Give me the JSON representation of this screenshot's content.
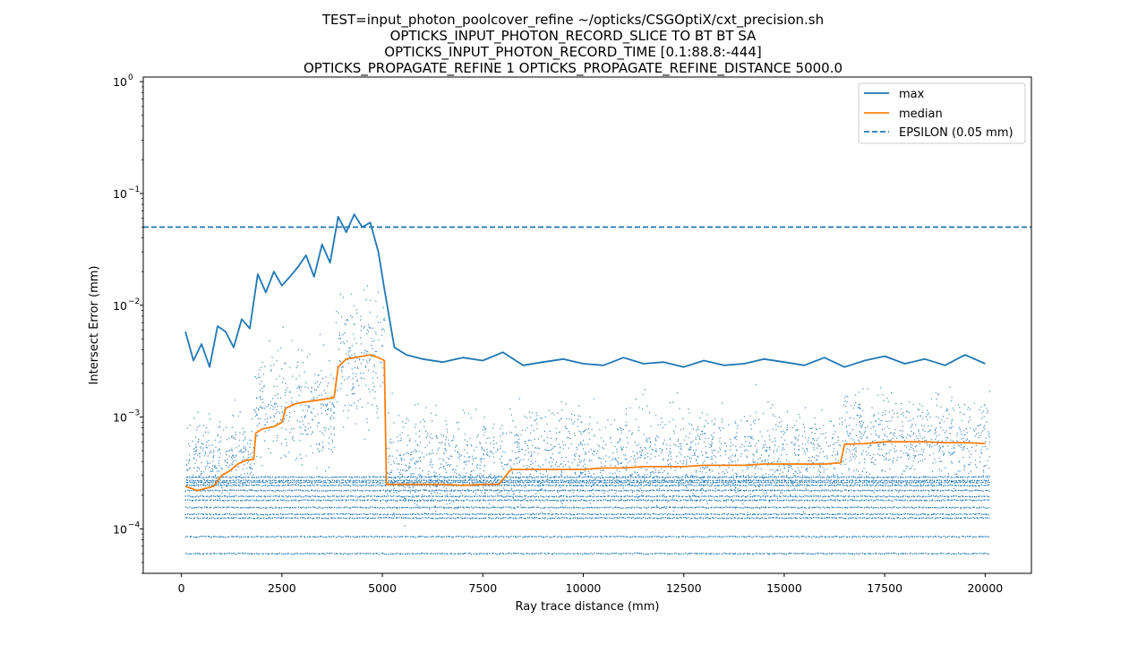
{
  "chart_data": {
    "type": "scatter",
    "title_lines": [
      "TEST=input_photon_poolcover_refine ~/opticks/CSGOptiX/cxt_precision.sh",
      "OPTICKS_INPUT_PHOTON_RECORD_SLICE TO BT BT SA",
      "OPTICKS_INPUT_PHOTON_RECORD_TIME [0.1:88.8:-444]",
      "OPTICKS_PROPAGATE_REFINE 1 OPTICKS_PROPAGATE_REFINE_DISTANCE 5000.0"
    ],
    "xlabel": "Ray trace distance (mm)",
    "ylabel": "Intersect Error (mm)",
    "xlim": [
      -950,
      21150
    ],
    "ylim": [
      4e-05,
      1.1
    ],
    "yscale": "log",
    "xticks": [
      0,
      2500,
      5000,
      7500,
      10000,
      12500,
      15000,
      17500,
      20000
    ],
    "xtick_labels": [
      "0",
      "2500",
      "5000",
      "7500",
      "10000",
      "12500",
      "15000",
      "17500",
      "20000"
    ],
    "yticks": [
      0.0001,
      0.001,
      0.01,
      0.1,
      1
    ],
    "ytick_labels": [
      "10",
      "10",
      "10",
      "10",
      "10"
    ],
    "ytick_exponents": [
      "−4",
      "−3",
      "−2",
      "−1",
      "0"
    ],
    "grid": false,
    "legend_position": "top-right",
    "series": [
      {
        "name": "max",
        "kind": "line",
        "color": "#1f77b4",
        "x": [
          100,
          300,
          500,
          700,
          900,
          1100,
          1300,
          1500,
          1700,
          1900,
          2100,
          2300,
          2500,
          2700,
          2900,
          3100,
          3300,
          3500,
          3700,
          3900,
          4100,
          4300,
          4500,
          4700,
          4900,
          5050,
          5300,
          5600,
          6000,
          6500,
          7000,
          7500,
          8000,
          8500,
          9000,
          9500,
          10000,
          10500,
          11000,
          11500,
          12000,
          12500,
          13000,
          13500,
          14000,
          14500,
          15000,
          15500,
          16000,
          16500,
          17000,
          17500,
          18000,
          18500,
          19000,
          19500,
          20000
        ],
        "y": [
          0.0058,
          0.0032,
          0.0045,
          0.0028,
          0.0065,
          0.0058,
          0.0042,
          0.0075,
          0.0062,
          0.019,
          0.013,
          0.02,
          0.015,
          0.018,
          0.022,
          0.028,
          0.018,
          0.035,
          0.024,
          0.062,
          0.045,
          0.065,
          0.05,
          0.055,
          0.03,
          0.014,
          0.0042,
          0.0036,
          0.0033,
          0.0031,
          0.0034,
          0.0032,
          0.0038,
          0.0029,
          0.0031,
          0.0033,
          0.003,
          0.0029,
          0.0034,
          0.003,
          0.0031,
          0.0028,
          0.0032,
          0.0029,
          0.003,
          0.0033,
          0.0031,
          0.0029,
          0.0034,
          0.0028,
          0.0032,
          0.0035,
          0.003,
          0.0033,
          0.0029,
          0.0036,
          0.003
        ]
      },
      {
        "name": "median",
        "kind": "line",
        "color": "#ff7f0e",
        "x": [
          100,
          400,
          600,
          800,
          1000,
          1200,
          1400,
          1600,
          1800,
          1850,
          2000,
          2300,
          2500,
          2600,
          2800,
          3000,
          3300,
          3600,
          3800,
          3900,
          4100,
          4300,
          4500,
          4700,
          4900,
          5050,
          5100,
          5400,
          6000,
          6500,
          7000,
          7500,
          7900,
          8200,
          8500,
          9000,
          9500,
          10000,
          10500,
          11000,
          11500,
          12000,
          12500,
          13000,
          13500,
          14000,
          14500,
          15000,
          15500,
          16000,
          16400,
          16500,
          17000,
          17500,
          18000,
          18500,
          19000,
          19500,
          20000
        ],
        "y": [
          0.00024,
          0.00022,
          0.00023,
          0.00024,
          0.0003,
          0.00033,
          0.00038,
          0.00041,
          0.00042,
          0.00072,
          0.00078,
          0.00082,
          0.0009,
          0.0012,
          0.0013,
          0.00135,
          0.0014,
          0.00145,
          0.0015,
          0.0028,
          0.0033,
          0.0034,
          0.0035,
          0.0036,
          0.0034,
          0.0032,
          0.00025,
          0.00025,
          0.00025,
          0.00025,
          0.000245,
          0.00025,
          0.00025,
          0.00034,
          0.00034,
          0.00034,
          0.00034,
          0.00034,
          0.00035,
          0.00035,
          0.00036,
          0.00036,
          0.00036,
          0.00037,
          0.00037,
          0.00037,
          0.00038,
          0.00038,
          0.00038,
          0.00038,
          0.00039,
          0.00057,
          0.00058,
          0.0006,
          0.0006,
          0.0006,
          0.00059,
          0.00059,
          0.00058
        ]
      },
      {
        "name": "EPSILON (0.05 mm)",
        "kind": "hline",
        "color": "#1f77b4",
        "linestyle": "dashed",
        "y": 0.05
      }
    ],
    "scatter": {
      "color": "#1f77b4",
      "x_range": [
        100,
        20100
      ],
      "bands": [
        6e-05,
        8.5e-05,
        0.000125,
        0.000135,
        0.000155,
        0.00018,
        0.000195,
        0.00022,
        0.000245,
        0.00026,
        0.00027,
        0.00029
      ],
      "regions": [
        {
          "x": [
            100,
            1800
          ],
          "center": 0.00045,
          "spread": 0.25
        },
        {
          "x": [
            1800,
            3800
          ],
          "center": 0.0012,
          "spread": 0.35
        },
        {
          "x": [
            3800,
            5050
          ],
          "center": 0.0035,
          "spread": 0.4
        },
        {
          "x": [
            5050,
            8200
          ],
          "center": 0.0004,
          "spread": 0.3
        },
        {
          "x": [
            8200,
            16400
          ],
          "center": 0.00045,
          "spread": 0.3
        },
        {
          "x": [
            16400,
            20100
          ],
          "center": 0.00065,
          "spread": 0.28
        }
      ]
    }
  }
}
